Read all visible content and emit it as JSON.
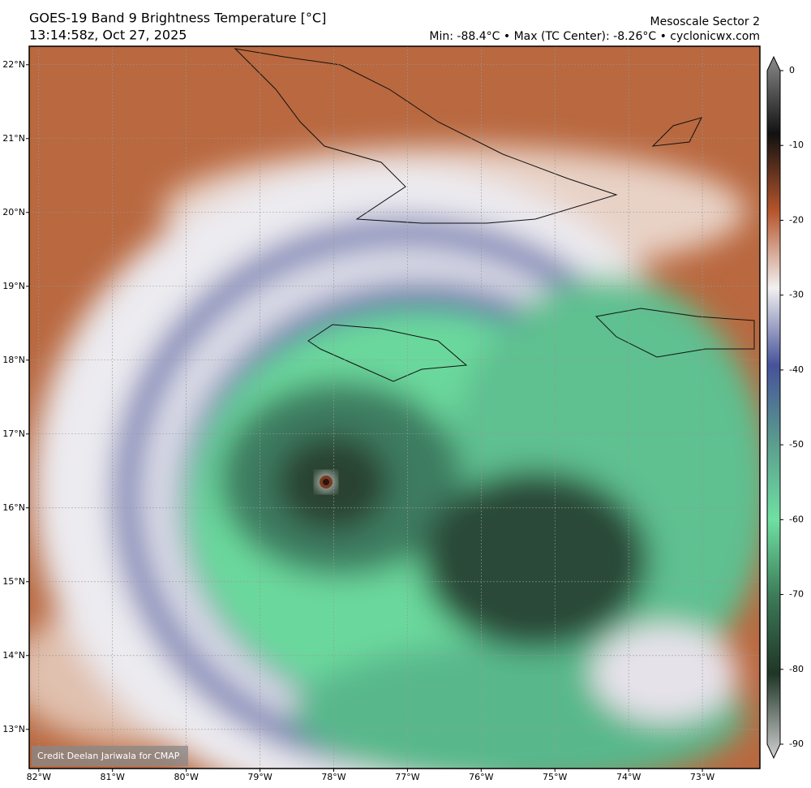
{
  "header": {
    "title": "GOES-19 Band 9 Brightness Temperature [°C]",
    "timestamp": "13:14:58z, Oct 27, 2025",
    "sector": "Mesoscale Sector 2",
    "stats": "Min: -88.4°C • Max (TC Center): -8.26°C • cyclonicwx.com"
  },
  "map": {
    "xlim": [
      -82.13,
      -72.22
    ],
    "ylim": [
      12.47,
      22.25
    ],
    "xticks": [
      {
        "value": -82,
        "label": "82°W"
      },
      {
        "value": -81,
        "label": "81°W"
      },
      {
        "value": -80,
        "label": "80°W"
      },
      {
        "value": -79,
        "label": "79°W"
      },
      {
        "value": -78,
        "label": "78°W"
      },
      {
        "value": -77,
        "label": "77°W"
      },
      {
        "value": -76,
        "label": "76°W"
      },
      {
        "value": -75,
        "label": "75°W"
      },
      {
        "value": -74,
        "label": "74°W"
      },
      {
        "value": -73,
        "label": "73°W"
      }
    ],
    "yticks": [
      {
        "value": 13,
        "label": "13°N"
      },
      {
        "value": 14,
        "label": "14°N"
      },
      {
        "value": 15,
        "label": "15°N"
      },
      {
        "value": 16,
        "label": "16°N"
      },
      {
        "value": 17,
        "label": "17°N"
      },
      {
        "value": 18,
        "label": "18°N"
      },
      {
        "value": 19,
        "label": "19°N"
      },
      {
        "value": 20,
        "label": "20°N"
      },
      {
        "value": 21,
        "label": "21°N"
      },
      {
        "value": 22,
        "label": "22°N"
      }
    ],
    "grid": true
  },
  "colorbar": {
    "lim": [
      0,
      -90
    ],
    "ticks": [
      0,
      -10,
      -20,
      -30,
      -40,
      -50,
      -60,
      -70,
      -80,
      -90
    ]
  },
  "credit": "Credit Deelan Jariwala for CMAP"
}
